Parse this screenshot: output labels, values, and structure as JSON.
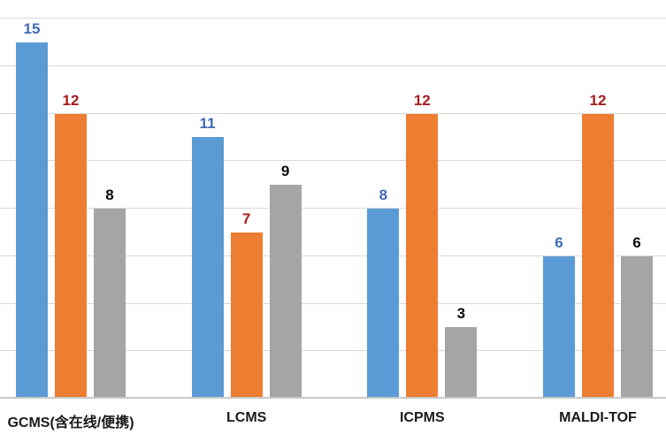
{
  "chart_data": {
    "type": "bar",
    "title": "",
    "categories": [
      "GCMS(含在线/便携)",
      "LCMS",
      "ICPMS",
      "MALDI-TOF"
    ],
    "series": [
      {
        "name": "blue",
        "color": "#5B9BD5",
        "label_color": "#3F6CB5",
        "values": [
          15,
          11,
          8,
          6
        ]
      },
      {
        "name": "orange",
        "color": "#ED7D31",
        "label_color": "#A61C1E",
        "values": [
          12,
          7,
          12,
          12
        ]
      },
      {
        "name": "gray",
        "color": "#A5A5A5",
        "label_color": "#0d0d0d",
        "values": [
          8,
          9,
          3,
          6
        ]
      }
    ],
    "xlabel": "",
    "ylabel": "",
    "ylim": [
      0,
      16
    ],
    "grid_step": 2,
    "grid": true,
    "legend_position": "none",
    "gridline_color": "#D9D9D9",
    "axis_line_color": "#C9C9C9",
    "background_color": "#FFFFFF",
    "data_labels_shown": true,
    "y_tick_labels_shown": false
  }
}
